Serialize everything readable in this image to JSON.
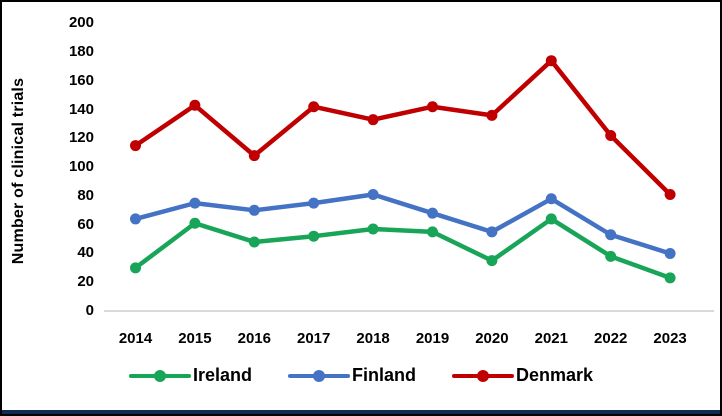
{
  "frame": {
    "background": "#ffffff",
    "border_color": "#000000",
    "bottom_bar_color": "#0d2a52"
  },
  "chart_data": {
    "type": "line",
    "title": "",
    "xlabel": "",
    "ylabel": "Number of clinical trials",
    "categories": [
      "2014",
      "2015",
      "2016",
      "2017",
      "2018",
      "2019",
      "2020",
      "2021",
      "2022",
      "2023"
    ],
    "series": [
      {
        "name": "Ireland",
        "color": "#18a558",
        "values": [
          30,
          61,
          48,
          52,
          57,
          55,
          35,
          64,
          38,
          23
        ]
      },
      {
        "name": "Finland",
        "color": "#4472c4",
        "values": [
          64,
          75,
          70,
          75,
          81,
          68,
          55,
          78,
          53,
          40
        ]
      },
      {
        "name": "Denmark",
        "color": "#c00000",
        "values": [
          115,
          143,
          108,
          142,
          133,
          142,
          136,
          174,
          122,
          81
        ]
      }
    ],
    "ylim": [
      0,
      200
    ],
    "ytick_step": 20,
    "yticks": [
      "0",
      "20",
      "40",
      "60",
      "80",
      "100",
      "120",
      "140",
      "160",
      "180",
      "200"
    ],
    "grid": false,
    "axis_line_color": "#d9d9d9",
    "legend_position": "bottom"
  }
}
